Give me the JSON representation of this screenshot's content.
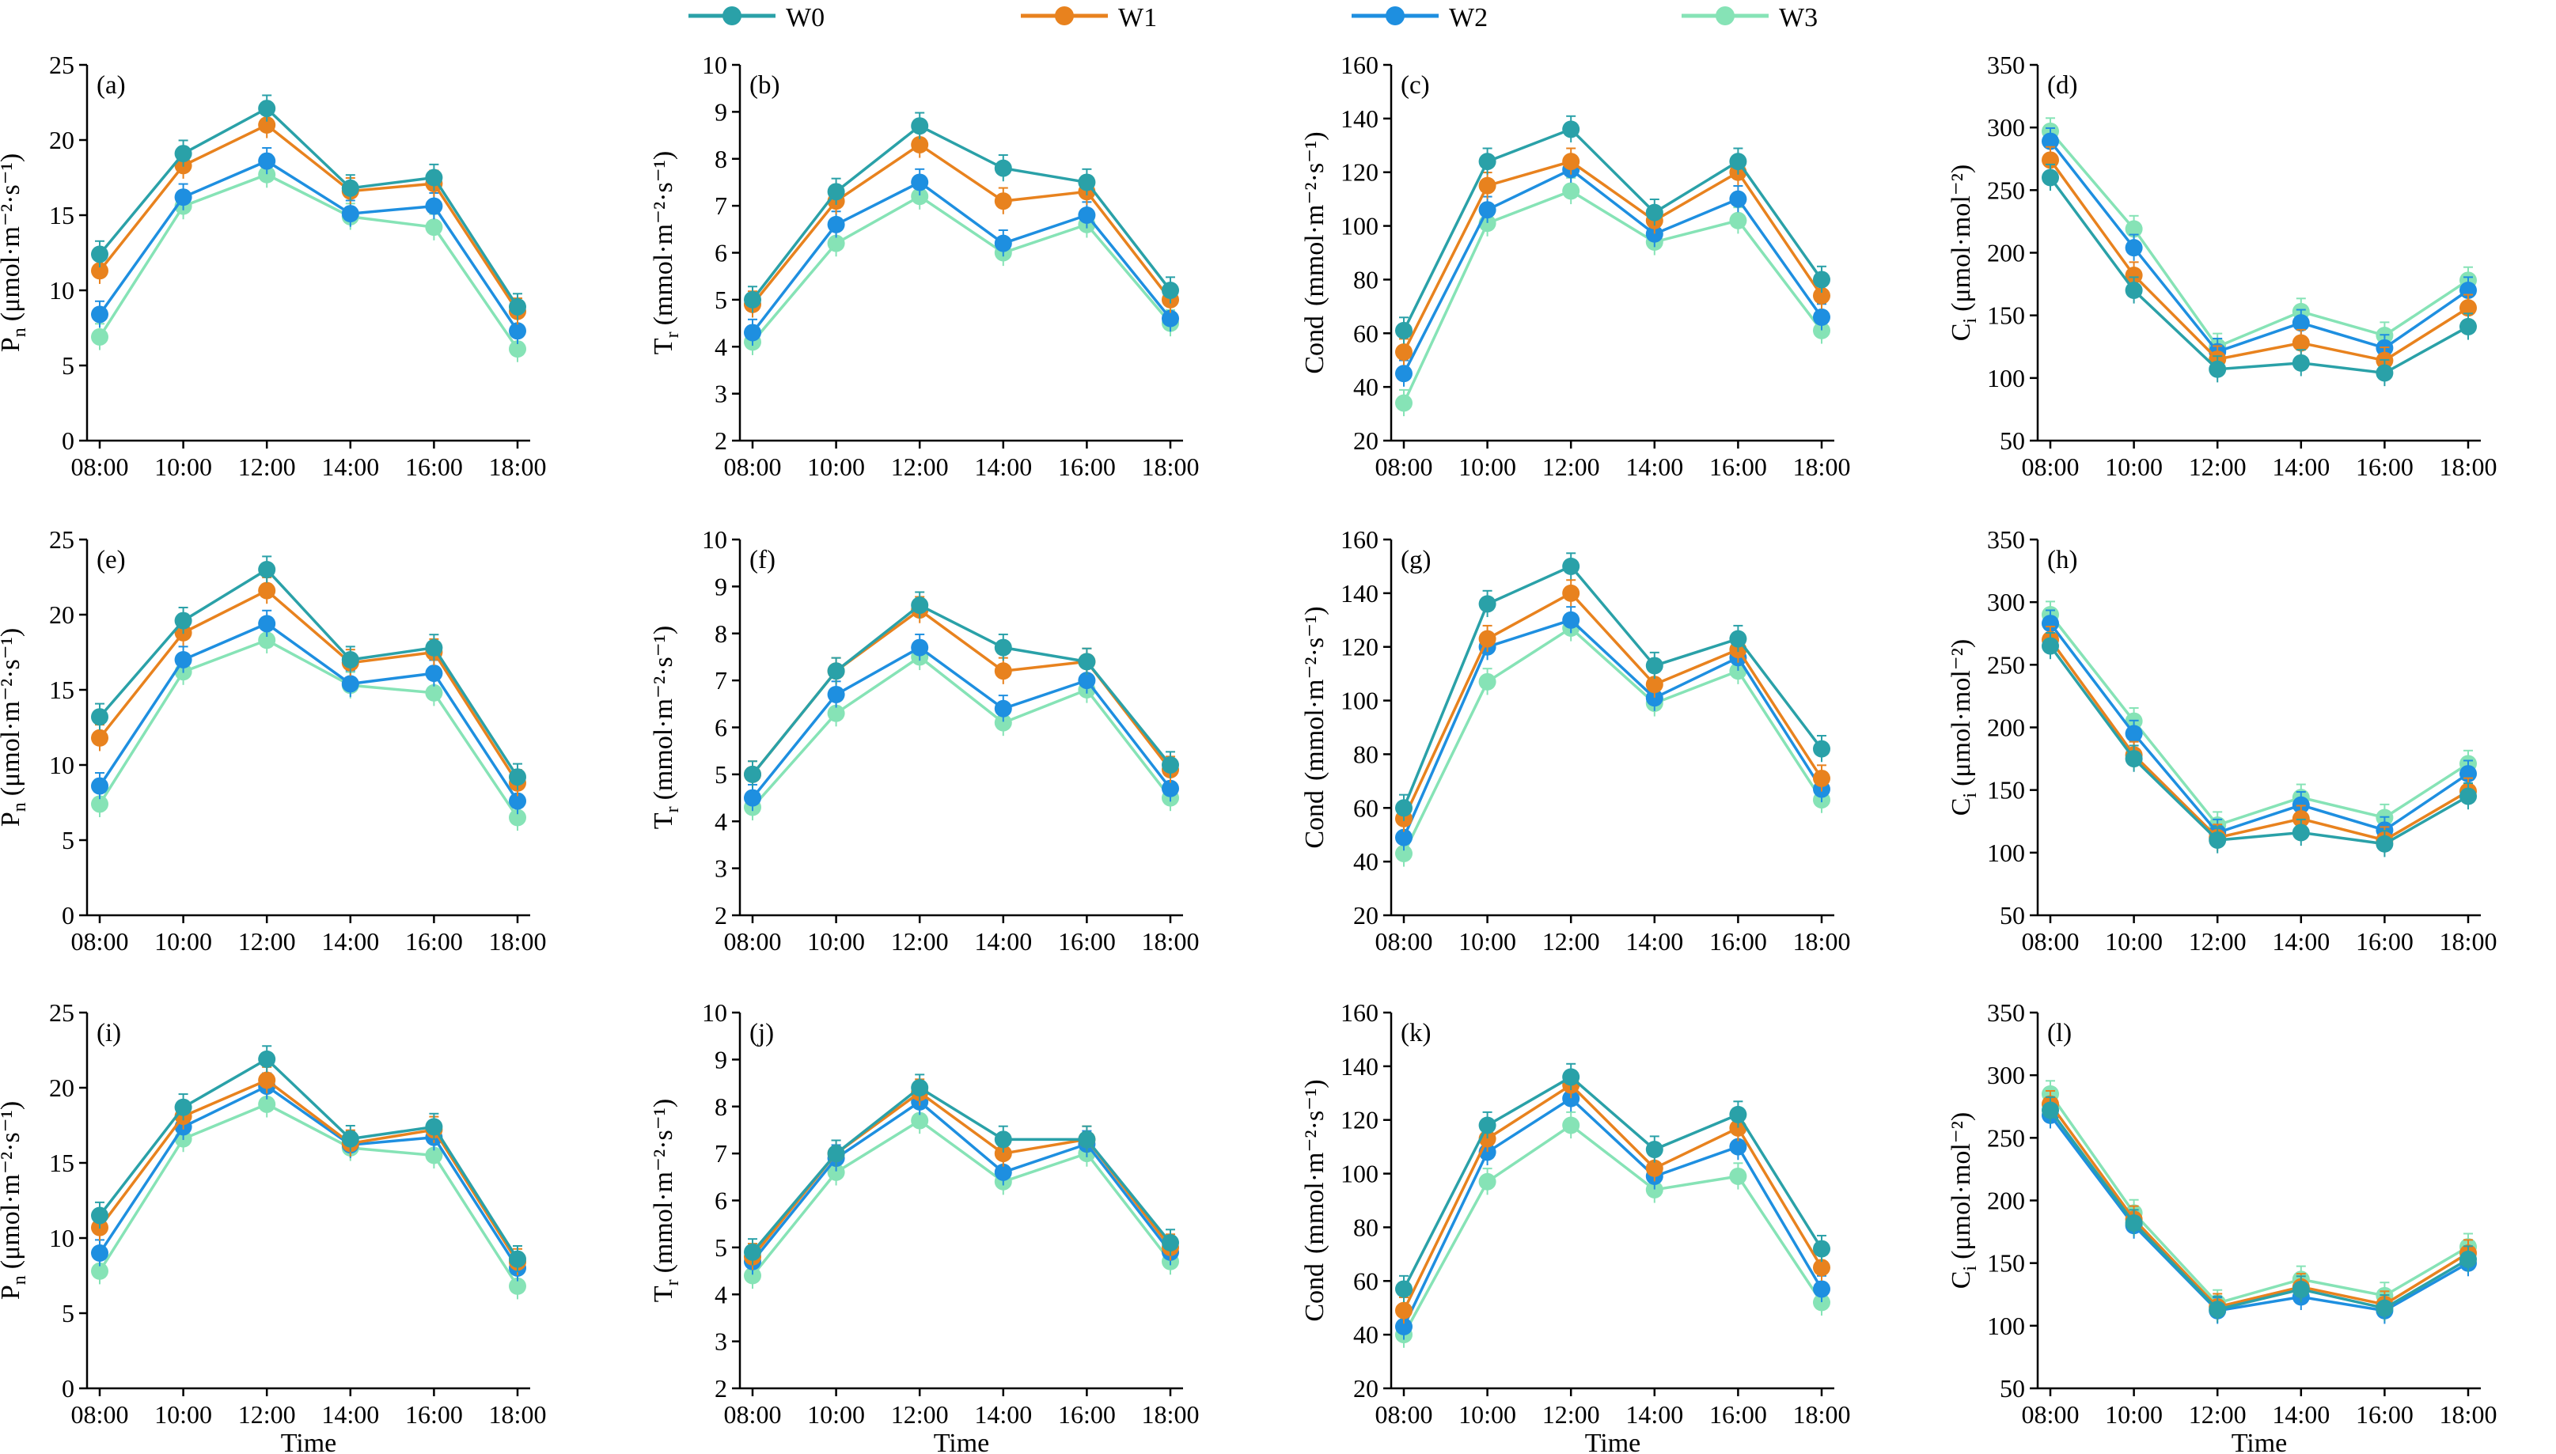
{
  "legend": [
    {
      "name": "W0",
      "color": "#2aa1a8"
    },
    {
      "name": "W1",
      "color": "#e8821e"
    },
    {
      "name": "W2",
      "color": "#1e8fe0"
    },
    {
      "name": "W3",
      "color": "#86e3b6"
    }
  ],
  "time_label": "Time",
  "chart_data": [
    {
      "type": "line",
      "panel": "(a)",
      "ylabel_base": "P",
      "ylabel_sub": "n",
      "ylabel_unit": "(μmol·m⁻²·s⁻¹)",
      "ylim": [
        0,
        25
      ],
      "yticks": [
        0,
        5,
        10,
        15,
        20,
        25
      ],
      "categories": [
        "08:00",
        "10:00",
        "12:00",
        "14:00",
        "16:00",
        "18:00"
      ],
      "xlabel": "",
      "series": [
        {
          "name": "W0",
          "values": [
            12.4,
            19.1,
            22.1,
            16.8,
            17.5,
            8.9
          ]
        },
        {
          "name": "W1",
          "values": [
            11.3,
            18.3,
            21.0,
            16.6,
            17.1,
            8.6
          ]
        },
        {
          "name": "W2",
          "values": [
            8.4,
            16.2,
            18.6,
            15.1,
            15.6,
            7.3
          ]
        },
        {
          "name": "W3",
          "values": [
            6.9,
            15.6,
            17.7,
            14.9,
            14.2,
            6.1
          ]
        }
      ]
    },
    {
      "type": "line",
      "panel": "(b)",
      "ylabel_base": "T",
      "ylabel_sub": "r",
      "ylabel_unit": "(mmol·m⁻²·s⁻¹)",
      "ylim": [
        2,
        10
      ],
      "yticks": [
        2,
        3,
        4,
        5,
        6,
        7,
        8,
        9,
        10
      ],
      "categories": [
        "08:00",
        "10:00",
        "12:00",
        "14:00",
        "16:00",
        "18:00"
      ],
      "xlabel": "",
      "series": [
        {
          "name": "W0",
          "values": [
            5.0,
            7.3,
            8.7,
            7.8,
            7.5,
            5.2
          ]
        },
        {
          "name": "W1",
          "values": [
            4.9,
            7.1,
            8.3,
            7.1,
            7.3,
            5.0
          ]
        },
        {
          "name": "W2",
          "values": [
            4.3,
            6.6,
            7.5,
            6.2,
            6.8,
            4.6
          ]
        },
        {
          "name": "W3",
          "values": [
            4.1,
            6.2,
            7.2,
            6.0,
            6.6,
            4.5
          ]
        }
      ]
    },
    {
      "type": "line",
      "panel": "(c)",
      "ylabel_base": "Cond",
      "ylabel_sub": "",
      "ylabel_unit": "(mmol·m⁻²·s⁻¹)",
      "ylim": [
        20,
        160
      ],
      "yticks": [
        20,
        40,
        60,
        80,
        100,
        120,
        140,
        160
      ],
      "categories": [
        "08:00",
        "10:00",
        "12:00",
        "14:00",
        "16:00",
        "18:00"
      ],
      "xlabel": "",
      "series": [
        {
          "name": "W0",
          "values": [
            61,
            124,
            136,
            105,
            124,
            80
          ]
        },
        {
          "name": "W1",
          "values": [
            53,
            115,
            124,
            102,
            120,
            74
          ]
        },
        {
          "name": "W2",
          "values": [
            45,
            106,
            121,
            97,
            110,
            66
          ]
        },
        {
          "name": "W3",
          "values": [
            34,
            101,
            113,
            94,
            102,
            61
          ]
        }
      ]
    },
    {
      "type": "line",
      "panel": "(d)",
      "ylabel_base": "C",
      "ylabel_sub": "i",
      "ylabel_unit": "(μmol·mol⁻²)",
      "ylim": [
        50,
        350
      ],
      "yticks": [
        50,
        100,
        150,
        200,
        250,
        300,
        350
      ],
      "categories": [
        "08:00",
        "10:00",
        "12:00",
        "14:00",
        "16:00",
        "18:00"
      ],
      "xlabel": "",
      "series": [
        {
          "name": "W0",
          "values": [
            260,
            170,
            107,
            112,
            104,
            141
          ]
        },
        {
          "name": "W1",
          "values": [
            274,
            182,
            115,
            128,
            114,
            156
          ]
        },
        {
          "name": "W2",
          "values": [
            289,
            204,
            121,
            144,
            124,
            170
          ]
        },
        {
          "name": "W3",
          "values": [
            297,
            219,
            125,
            153,
            134,
            178
          ]
        }
      ]
    },
    {
      "type": "line",
      "panel": "(e)",
      "ylabel_base": "P",
      "ylabel_sub": "n",
      "ylabel_unit": "(μmol·m⁻²·s⁻¹)",
      "ylim": [
        0,
        25
      ],
      "yticks": [
        0,
        5,
        10,
        15,
        20,
        25
      ],
      "categories": [
        "08:00",
        "10:00",
        "12:00",
        "14:00",
        "16:00",
        "18:00"
      ],
      "xlabel": "",
      "series": [
        {
          "name": "W0",
          "values": [
            13.2,
            19.6,
            23.0,
            17.0,
            17.8,
            9.2
          ]
        },
        {
          "name": "W1",
          "values": [
            11.8,
            18.8,
            21.6,
            16.8,
            17.5,
            8.8
          ]
        },
        {
          "name": "W2",
          "values": [
            8.6,
            17.0,
            19.4,
            15.4,
            16.1,
            7.6
          ]
        },
        {
          "name": "W3",
          "values": [
            7.4,
            16.2,
            18.3,
            15.3,
            14.8,
            6.5
          ]
        }
      ]
    },
    {
      "type": "line",
      "panel": "(f)",
      "ylabel_base": "T",
      "ylabel_sub": "r",
      "ylabel_unit": "(mmol·m⁻²·s⁻¹)",
      "ylim": [
        2,
        10
      ],
      "yticks": [
        2,
        3,
        4,
        5,
        6,
        7,
        8,
        9,
        10
      ],
      "categories": [
        "08:00",
        "10:00",
        "12:00",
        "14:00",
        "16:00",
        "18:00"
      ],
      "xlabel": "",
      "series": [
        {
          "name": "W0",
          "values": [
            5.0,
            7.2,
            8.6,
            7.7,
            7.4,
            5.2
          ]
        },
        {
          "name": "W1",
          "values": [
            5.0,
            7.2,
            8.5,
            7.2,
            7.4,
            5.1
          ]
        },
        {
          "name": "W2",
          "values": [
            4.5,
            6.7,
            7.7,
            6.4,
            7.0,
            4.7
          ]
        },
        {
          "name": "W3",
          "values": [
            4.3,
            6.3,
            7.5,
            6.1,
            6.8,
            4.5
          ]
        }
      ]
    },
    {
      "type": "line",
      "panel": "(g)",
      "ylabel_base": "Cond",
      "ylabel_sub": "",
      "ylabel_unit": "(mmol·m⁻²·s⁻¹)",
      "ylim": [
        20,
        160
      ],
      "yticks": [
        20,
        40,
        60,
        80,
        100,
        120,
        140,
        160
      ],
      "categories": [
        "08:00",
        "10:00",
        "12:00",
        "14:00",
        "16:00",
        "18:00"
      ],
      "xlabel": "",
      "series": [
        {
          "name": "W0",
          "values": [
            60,
            136,
            150,
            113,
            123,
            82
          ]
        },
        {
          "name": "W1",
          "values": [
            56,
            123,
            140,
            106,
            119,
            71
          ]
        },
        {
          "name": "W2",
          "values": [
            49,
            120,
            130,
            101,
            116,
            67
          ]
        },
        {
          "name": "W3",
          "values": [
            43,
            107,
            127,
            99,
            111,
            63
          ]
        }
      ]
    },
    {
      "type": "line",
      "panel": "(h)",
      "ylabel_base": "C",
      "ylabel_sub": "i",
      "ylabel_unit": "(μmol·mol⁻²)",
      "ylim": [
        50,
        350
      ],
      "yticks": [
        50,
        100,
        150,
        200,
        250,
        300,
        350
      ],
      "categories": [
        "08:00",
        "10:00",
        "12:00",
        "14:00",
        "16:00",
        "18:00"
      ],
      "xlabel": "",
      "series": [
        {
          "name": "W0",
          "values": [
            265,
            175,
            110,
            116,
            107,
            145
          ]
        },
        {
          "name": "W1",
          "values": [
            270,
            178,
            112,
            127,
            110,
            149
          ]
        },
        {
          "name": "W2",
          "values": [
            283,
            195,
            116,
            138,
            118,
            163
          ]
        },
        {
          "name": "W3",
          "values": [
            290,
            205,
            122,
            144,
            128,
            171
          ]
        }
      ]
    },
    {
      "type": "line",
      "panel": "(i)",
      "ylabel_base": "P",
      "ylabel_sub": "n",
      "ylabel_unit": "(μmol·m⁻²·s⁻¹)",
      "ylim": [
        0,
        25
      ],
      "yticks": [
        0,
        5,
        10,
        15,
        20,
        25
      ],
      "categories": [
        "08:00",
        "10:00",
        "12:00",
        "14:00",
        "16:00",
        "18:00"
      ],
      "xlabel": "Time",
      "series": [
        {
          "name": "W0",
          "values": [
            11.5,
            18.7,
            21.9,
            16.6,
            17.4,
            8.6
          ]
        },
        {
          "name": "W1",
          "values": [
            10.7,
            18.1,
            20.5,
            16.3,
            17.2,
            8.4
          ]
        },
        {
          "name": "W2",
          "values": [
            9.0,
            17.4,
            20.1,
            16.2,
            16.7,
            8.0
          ]
        },
        {
          "name": "W3",
          "values": [
            7.8,
            16.6,
            18.9,
            16.0,
            15.5,
            6.8
          ]
        }
      ]
    },
    {
      "type": "line",
      "panel": "(j)",
      "ylabel_base": "T",
      "ylabel_sub": "r",
      "ylabel_unit": "(mmol·m⁻²·s⁻¹)",
      "ylim": [
        2,
        10
      ],
      "yticks": [
        2,
        3,
        4,
        5,
        6,
        7,
        8,
        9,
        10
      ],
      "categories": [
        "08:00",
        "10:00",
        "12:00",
        "14:00",
        "16:00",
        "18:00"
      ],
      "xlabel": "Time",
      "series": [
        {
          "name": "W0",
          "values": [
            4.9,
            7.0,
            8.4,
            7.3,
            7.3,
            5.1
          ]
        },
        {
          "name": "W1",
          "values": [
            4.8,
            7.0,
            8.3,
            7.0,
            7.3,
            5.0
          ]
        },
        {
          "name": "W2",
          "values": [
            4.7,
            6.9,
            8.1,
            6.6,
            7.2,
            4.9
          ]
        },
        {
          "name": "W3",
          "values": [
            4.4,
            6.6,
            7.7,
            6.4,
            7.0,
            4.7
          ]
        }
      ]
    },
    {
      "type": "line",
      "panel": "(k)",
      "ylabel_base": "Cond",
      "ylabel_sub": "",
      "ylabel_unit": "(mmol·m⁻²·s⁻¹)",
      "ylim": [
        20,
        160
      ],
      "yticks": [
        20,
        40,
        60,
        80,
        100,
        120,
        140,
        160
      ],
      "categories": [
        "08:00",
        "10:00",
        "12:00",
        "14:00",
        "16:00",
        "18:00"
      ],
      "xlabel": "Time",
      "series": [
        {
          "name": "W0",
          "values": [
            57,
            118,
            136,
            109,
            122,
            72
          ]
        },
        {
          "name": "W1",
          "values": [
            49,
            113,
            133,
            102,
            117,
            65
          ]
        },
        {
          "name": "W2",
          "values": [
            43,
            108,
            128,
            99,
            110,
            57
          ]
        },
        {
          "name": "W3",
          "values": [
            40,
            97,
            118,
            94,
            99,
            52
          ]
        }
      ]
    },
    {
      "type": "line",
      "panel": "(l)",
      "ylabel_base": "C",
      "ylabel_sub": "i",
      "ylabel_unit": "(μmol·mol⁻²)",
      "ylim": [
        50,
        350
      ],
      "yticks": [
        50,
        100,
        150,
        200,
        250,
        300,
        350
      ],
      "categories": [
        "08:00",
        "10:00",
        "12:00",
        "14:00",
        "16:00",
        "18:00"
      ],
      "xlabel": "Time",
      "series": [
        {
          "name": "W0",
          "values": [
            272,
            182,
            113,
            129,
            114,
            153
          ]
        },
        {
          "name": "W1",
          "values": [
            277,
            185,
            115,
            131,
            117,
            158
          ]
        },
        {
          "name": "W2",
          "values": [
            268,
            180,
            112,
            123,
            112,
            150
          ]
        },
        {
          "name": "W3",
          "values": [
            285,
            190,
            118,
            137,
            124,
            163
          ]
        }
      ]
    }
  ]
}
